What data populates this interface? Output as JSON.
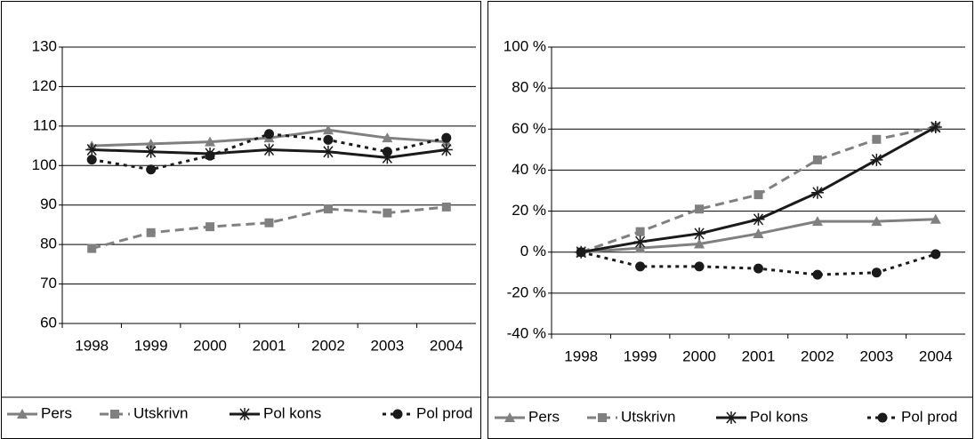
{
  "chart_data": [
    {
      "type": "line",
      "categories": [
        "1998",
        "1999",
        "2000",
        "2001",
        "2002",
        "2003",
        "2004"
      ],
      "series": [
        {
          "name": "Pers",
          "color": "#808080",
          "marker": "triangle",
          "dash": "solid",
          "values": [
            105,
            105.5,
            106,
            107,
            109,
            107,
            106
          ]
        },
        {
          "name": "Utskrivn",
          "color": "#808080",
          "marker": "square",
          "dash": "dashed",
          "values": [
            79,
            83,
            84.5,
            85.5,
            89,
            88,
            89.5
          ]
        },
        {
          "name": "Pol kons",
          "color": "#1a1a1a",
          "marker": "star",
          "dash": "solid",
          "values": [
            104,
            103.5,
            103,
            104,
            103.5,
            102,
            104
          ]
        },
        {
          "name": "Pol prod",
          "color": "#1a1a1a",
          "marker": "circle",
          "dash": "dotted",
          "values": [
            101.5,
            99,
            102.5,
            108,
            106.5,
            103.5,
            107
          ]
        }
      ],
      "ylim": [
        60,
        130
      ],
      "yticks": [
        60,
        70,
        80,
        90,
        100,
        110,
        120,
        130
      ],
      "grid": true,
      "legend": "bottom"
    },
    {
      "type": "line",
      "categories": [
        "1998",
        "1999",
        "2000",
        "2001",
        "2002",
        "2003",
        "2004"
      ],
      "series": [
        {
          "name": "Pers",
          "color": "#808080",
          "marker": "triangle",
          "dash": "solid",
          "values": [
            0,
            2,
            4,
            9,
            15,
            15,
            16
          ]
        },
        {
          "name": "Utskrivn",
          "color": "#808080",
          "marker": "square",
          "dash": "dashed",
          "values": [
            0,
            10,
            21,
            28,
            45,
            55,
            61
          ]
        },
        {
          "name": "Pol kons",
          "color": "#1a1a1a",
          "marker": "star",
          "dash": "solid",
          "values": [
            0,
            5,
            9,
            16,
            29,
            45,
            61
          ]
        },
        {
          "name": "Pol prod",
          "color": "#1a1a1a",
          "marker": "circle",
          "dash": "dotted",
          "values": [
            0,
            -7,
            -7,
            -8,
            -11,
            -10,
            -1
          ]
        }
      ],
      "ylim": [
        -40,
        100
      ],
      "yticks": [
        {
          "value": -40,
          "label": "-40 %"
        },
        {
          "value": -20,
          "label": "-20 %"
        },
        {
          "value": 0,
          "label": "0 %"
        },
        {
          "value": 20,
          "label": "20 %"
        },
        {
          "value": 40,
          "label": "40 %"
        },
        {
          "value": 60,
          "label": "60 %"
        },
        {
          "value": 80,
          "label": "80 %"
        },
        {
          "value": 100,
          "label": "100 %"
        }
      ],
      "grid": true,
      "legend": "bottom"
    }
  ]
}
